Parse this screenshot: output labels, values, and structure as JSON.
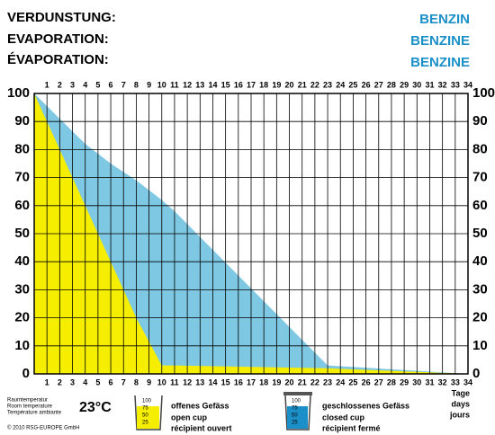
{
  "chart_data": {
    "type": "area",
    "title": [
      "VERDUNSTUNG:",
      "EVAPORATION:",
      "ÉVAPORATION:"
    ],
    "subtitle": [
      "BENZIN",
      "BENZINE",
      "BENZINE"
    ],
    "x": [
      0,
      2,
      4,
      6,
      8,
      10,
      11,
      23,
      34
    ],
    "series": [
      {
        "name": [
          "geschlossenes Gefäss",
          "closed cup",
          "récipient fermé"
        ],
        "color": "#7ec8e3",
        "values": [
          100,
          91,
          82,
          75,
          69,
          62,
          58,
          3,
          0
        ]
      },
      {
        "name": [
          "offenes Gefäss",
          "open cup",
          "récipient ouvert"
        ],
        "color": "#f5ee00",
        "values": [
          100,
          80,
          60,
          40,
          20,
          3,
          3,
          2,
          0
        ]
      }
    ],
    "xlim": [
      0,
      34
    ],
    "xticks": [
      1,
      2,
      3,
      4,
      5,
      6,
      7,
      8,
      9,
      10,
      11,
      12,
      13,
      14,
      15,
      16,
      17,
      18,
      19,
      20,
      21,
      22,
      23,
      24,
      25,
      26,
      27,
      28,
      29,
      30,
      31,
      32,
      33,
      34
    ],
    "ylim": [
      0,
      100
    ],
    "yticks": [
      0,
      10,
      20,
      30,
      40,
      50,
      60,
      70,
      80,
      90,
      100
    ],
    "grid": true,
    "xlabel": [
      "Tage",
      "days",
      "jours"
    ],
    "temperature_label": [
      "Raumtemperatur",
      "Room temperature",
      "Température ambiante"
    ],
    "temperature": "23°C",
    "copyright": "© 2010  RSG-EUROPE GmbH",
    "cup_scale": [
      100,
      75,
      50,
      25
    ]
  }
}
